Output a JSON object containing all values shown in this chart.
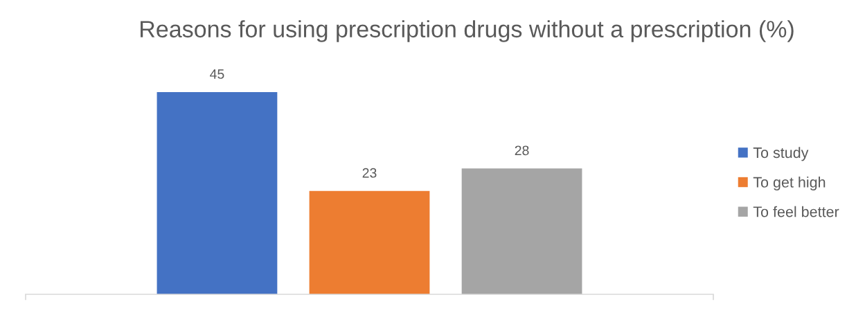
{
  "chart_data": {
    "type": "bar",
    "title": "Reasons for using prescription drugs without a prescription (%)",
    "categories": [
      null
    ],
    "series": [
      {
        "name": "To study",
        "color": "#4472c4",
        "values": [
          45
        ]
      },
      {
        "name": "To get high",
        "color": "#ed7d31",
        "values": [
          23
        ]
      },
      {
        "name": "To feel better",
        "color": "#a5a5a5",
        "values": [
          28
        ]
      }
    ],
    "data_labels": true,
    "legend": "right",
    "tick_labels": false
  }
}
